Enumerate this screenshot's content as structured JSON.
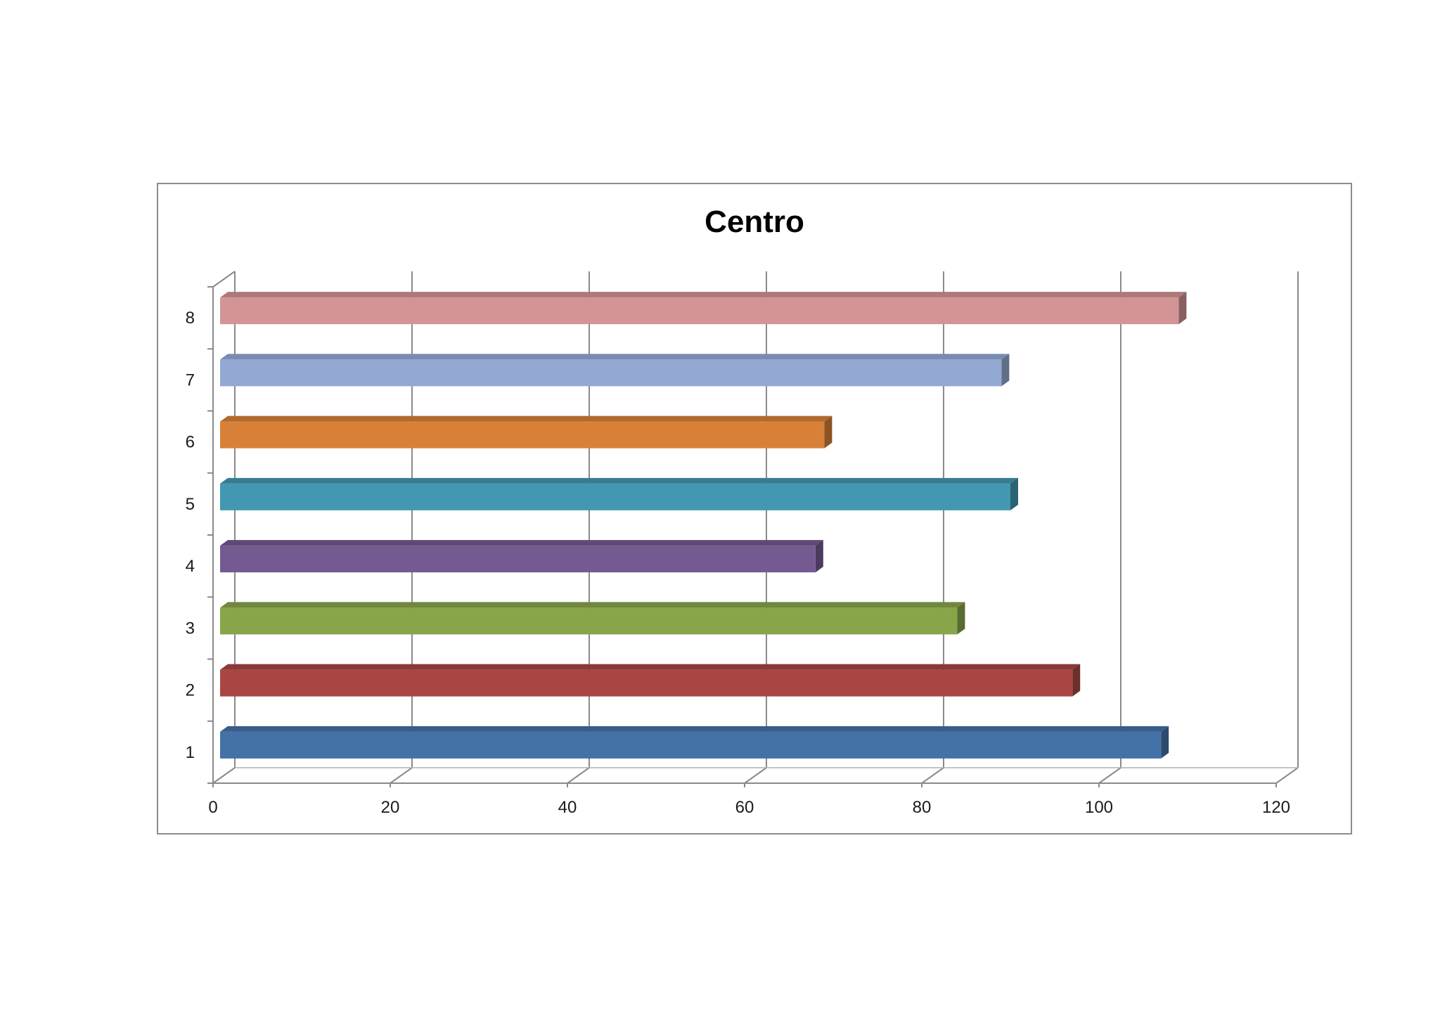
{
  "chart_data": {
    "type": "bar",
    "orientation": "horizontal",
    "style": "3d",
    "title": "Centro",
    "xlabel": "",
    "ylabel": "",
    "categories": [
      "1",
      "2",
      "3",
      "4",
      "5",
      "6",
      "7",
      "8"
    ],
    "values": [
      107,
      97,
      84,
      68,
      90,
      69,
      89,
      109
    ],
    "colors": [
      "#4472a8",
      "#a94644",
      "#88a54a",
      "#745a90",
      "#4298b0",
      "#d98038",
      "#93a9d4",
      "#d39496"
    ],
    "xlim": [
      0,
      120
    ],
    "xticks": [
      "0",
      "20",
      "40",
      "60",
      "80",
      "100",
      "120"
    ],
    "grid": true,
    "legend": "none"
  }
}
